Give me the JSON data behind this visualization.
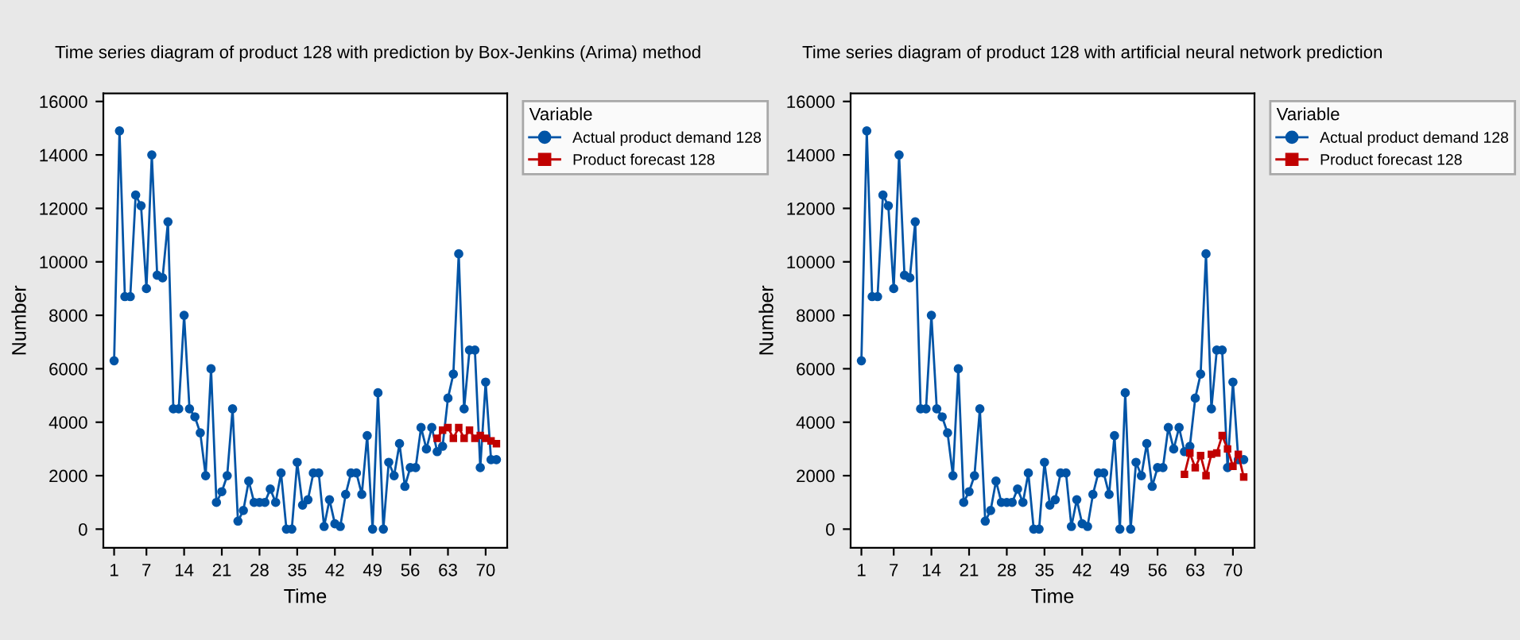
{
  "chart_data": [
    {
      "type": "line",
      "title": "Time series diagram of product 128 with prediction by Box-Jenkins (Arima) method",
      "xlabel": "Time",
      "ylabel": "Number",
      "legend_title": "Variable",
      "legend": "right",
      "xlim": [
        -1,
        74
      ],
      "xticks": [
        1,
        7,
        14,
        21,
        28,
        35,
        42,
        49,
        56,
        63,
        70
      ],
      "ylim": [
        -700,
        16300
      ],
      "yticks": [
        0,
        2000,
        4000,
        6000,
        8000,
        10000,
        12000,
        14000,
        16000
      ],
      "series": [
        {
          "name": "Actual product demand 128",
          "color": "#0054a6",
          "marker": "circle",
          "x": [
            1,
            2,
            3,
            4,
            5,
            6,
            7,
            8,
            9,
            10,
            11,
            12,
            13,
            14,
            15,
            16,
            17,
            18,
            19,
            20,
            21,
            22,
            23,
            24,
            25,
            26,
            27,
            28,
            29,
            30,
            31,
            32,
            33,
            34,
            35,
            36,
            37,
            38,
            39,
            40,
            41,
            42,
            43,
            44,
            45,
            46,
            47,
            48,
            49,
            50,
            51,
            52,
            53,
            54,
            55,
            56,
            57,
            58,
            59,
            60,
            61,
            62,
            63,
            64,
            65,
            66,
            67,
            68,
            69,
            70,
            71,
            72
          ],
          "values": [
            6300,
            14900,
            8700,
            8700,
            12500,
            12100,
            9000,
            14000,
            9500,
            9400,
            11500,
            4500,
            4500,
            8000,
            4500,
            4200,
            3600,
            2000,
            6000,
            1000,
            1400,
            2000,
            4500,
            300,
            700,
            1800,
            1000,
            1000,
            1000,
            1500,
            1000,
            2100,
            0,
            0,
            2500,
            900,
            1100,
            2100,
            2100,
            100,
            1100,
            200,
            100,
            1300,
            2100,
            2100,
            1300,
            3500,
            0,
            5100,
            0,
            2500,
            2000,
            3200,
            1600,
            2300,
            2300,
            3800,
            3000,
            3800,
            2900,
            3100,
            4900,
            5800,
            10300,
            4500,
            6700,
            6700,
            2300,
            5500,
            2600,
            2600
          ]
        },
        {
          "name": "Product forecast 128",
          "color": "#c00000",
          "marker": "square",
          "x": [
            61,
            62,
            63,
            64,
            65,
            66,
            67,
            68,
            69,
            70,
            71,
            72
          ],
          "values": [
            3400,
            3700,
            3800,
            3400,
            3800,
            3400,
            3700,
            3400,
            3500,
            3400,
            3300,
            3200
          ]
        }
      ]
    },
    {
      "type": "line",
      "title": "Time series diagram of product 128 with artificial neural network prediction",
      "xlabel": "Time",
      "ylabel": "Number",
      "legend_title": "Variable",
      "legend": "right",
      "xlim": [
        -1,
        74
      ],
      "xticks": [
        1,
        7,
        14,
        21,
        28,
        35,
        42,
        49,
        56,
        63,
        70
      ],
      "ylim": [
        -700,
        16300
      ],
      "yticks": [
        0,
        2000,
        4000,
        6000,
        8000,
        10000,
        12000,
        14000,
        16000
      ],
      "series": [
        {
          "name": "Actual product demand 128",
          "color": "#0054a6",
          "marker": "circle",
          "x": [
            1,
            2,
            3,
            4,
            5,
            6,
            7,
            8,
            9,
            10,
            11,
            12,
            13,
            14,
            15,
            16,
            17,
            18,
            19,
            20,
            21,
            22,
            23,
            24,
            25,
            26,
            27,
            28,
            29,
            30,
            31,
            32,
            33,
            34,
            35,
            36,
            37,
            38,
            39,
            40,
            41,
            42,
            43,
            44,
            45,
            46,
            47,
            48,
            49,
            50,
            51,
            52,
            53,
            54,
            55,
            56,
            57,
            58,
            59,
            60,
            61,
            62,
            63,
            64,
            65,
            66,
            67,
            68,
            69,
            70,
            71,
            72
          ],
          "values": [
            6300,
            14900,
            8700,
            8700,
            12500,
            12100,
            9000,
            14000,
            9500,
            9400,
            11500,
            4500,
            4500,
            8000,
            4500,
            4200,
            3600,
            2000,
            6000,
            1000,
            1400,
            2000,
            4500,
            300,
            700,
            1800,
            1000,
            1000,
            1000,
            1500,
            1000,
            2100,
            0,
            0,
            2500,
            900,
            1100,
            2100,
            2100,
            100,
            1100,
            200,
            100,
            1300,
            2100,
            2100,
            1300,
            3500,
            0,
            5100,
            0,
            2500,
            2000,
            3200,
            1600,
            2300,
            2300,
            3800,
            3000,
            3800,
            2900,
            3100,
            4900,
            5800,
            10300,
            4500,
            6700,
            6700,
            2300,
            5500,
            2600,
            2600
          ]
        },
        {
          "name": "Product forecast 128",
          "color": "#c00000",
          "marker": "square",
          "x": [
            61,
            62,
            63,
            64,
            65,
            66,
            67,
            68,
            69,
            70,
            71,
            72
          ],
          "values": [
            2050,
            2850,
            2300,
            2750,
            2000,
            2800,
            2850,
            3500,
            3000,
            2350,
            2800,
            1950
          ]
        }
      ]
    }
  ]
}
